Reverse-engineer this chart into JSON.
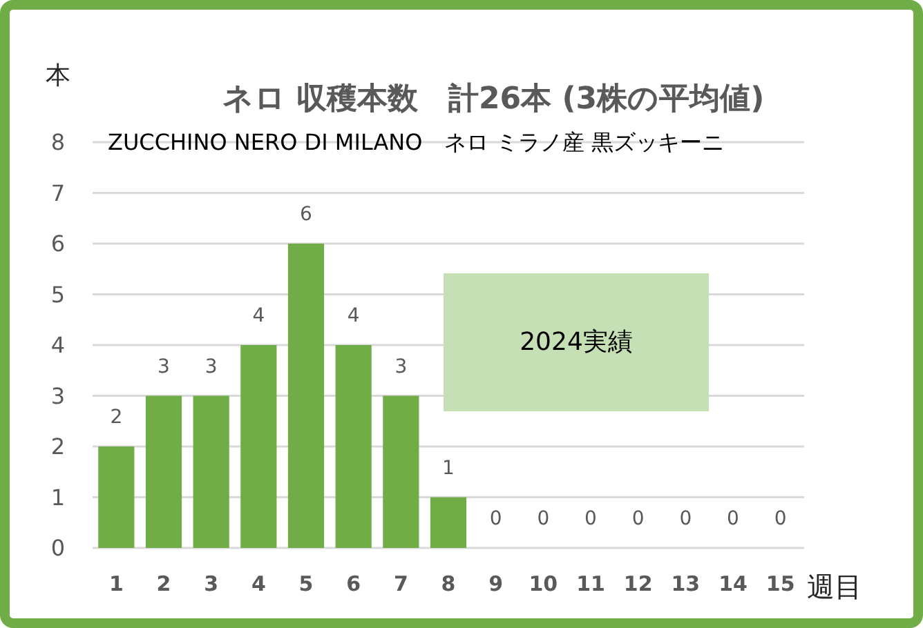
{
  "chart_data": {
    "type": "bar",
    "title": "ネロ 収穫本数　計26本 (3株の平均値)",
    "subtitle": "ZUCCHINO NERO DI MILANO　ネロ ミラノ産 黒ズッキーニ",
    "ylabel": "本",
    "xlabel": "週目",
    "categories": [
      "1",
      "2",
      "3",
      "4",
      "5",
      "6",
      "7",
      "8",
      "9",
      "10",
      "11",
      "12",
      "13",
      "14",
      "15"
    ],
    "values": [
      2,
      3,
      3,
      4,
      6,
      4,
      3,
      1,
      0,
      0,
      0,
      0,
      0,
      0,
      0
    ],
    "color": "#70ad47",
    "ylim": [
      0,
      8
    ],
    "yticks": [
      0,
      1,
      2,
      3,
      4,
      5,
      6,
      7,
      8
    ],
    "grid": "y",
    "data_labels": true,
    "annotations": [
      "2024実績"
    ]
  }
}
